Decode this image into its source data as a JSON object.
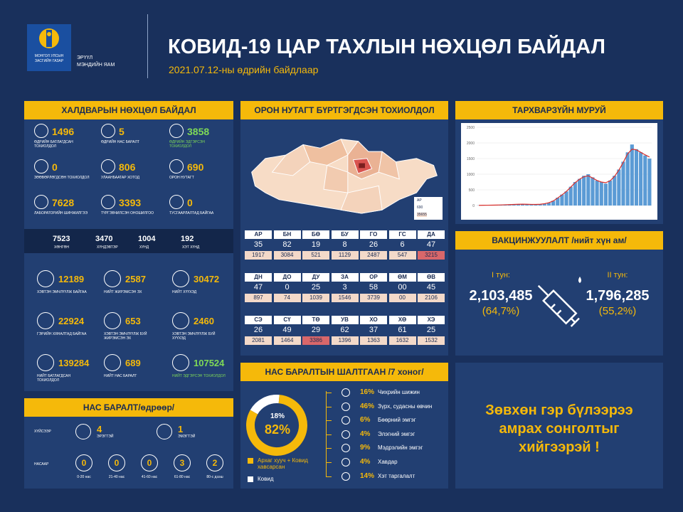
{
  "header": {
    "logo_line1": "МОНГОЛ УЛСЫН",
    "logo_line2": "ЗАСГИЙН ГАЗАР",
    "ministry_line1": "ЭРҮҮЛ",
    "ministry_line2": "МЭНДИЙН ЯАМ",
    "title": "КОВИД-19 ЦАР ТАХЛЫН НӨХЦӨЛ БАЙДАЛ",
    "date": "2021.07.12-ны өдрийн байдлаар"
  },
  "infection": {
    "title": "ХАЛДВАРЫН НӨХЦӨЛ БАЙДАЛ",
    "top": [
      {
        "value": "1496",
        "label": "ӨДРИЙН БАТЛАГДСАН ТОХИОЛДОЛ"
      },
      {
        "value": "5",
        "label": "ӨДРИЙН НАС БАРАЛТ"
      },
      {
        "value": "3858",
        "label": "ӨДРИЙН ЭДГЭРСЭН ТОХИОЛДОЛ",
        "green": true
      },
      {
        "value": "0",
        "label": "ЗӨӨВӨРЛӨГДСӨН ТОХИОЛДОЛ"
      },
      {
        "value": "806",
        "label": "УЛААНБААТАР ХОТОД"
      },
      {
        "value": "690",
        "label": "ОРОН НУТАГТ"
      },
      {
        "value": "7628",
        "label": "ЛАБОРАТОРИЙН ШИНЖИЛГЭЭ"
      },
      {
        "value": "3393",
        "label": "ТҮРГЭВЧИЛСЭН ОНОШИЛГОО"
      },
      {
        "value": "0",
        "label": "ТУСГААРЛАЛТАД БАЙГАА"
      }
    ],
    "severity": [
      {
        "value": "7523",
        "label": "ХӨНГӨН"
      },
      {
        "value": "3470",
        "label": "ХҮНДЭВТЭР"
      },
      {
        "value": "1004",
        "label": "ХҮНД"
      },
      {
        "value": "192",
        "label": "ХЭТ ХҮНД"
      }
    ],
    "bottom": [
      {
        "value": "12189",
        "label": "ХЭВТЭН ЭМЧЛҮҮЛЖ БАЙГАА"
      },
      {
        "value": "2587",
        "label": "НИЙТ ЖИРЭМСЭН ЭХ"
      },
      {
        "value": "30472",
        "label": "НИЙТ ХҮҮХЭД"
      },
      {
        "value": "22924",
        "label": "ГЭРИЙН ХЯНАЛТАД БАЙГАА"
      },
      {
        "value": "653",
        "label": "ХЭВТЭН ЭМЧЛҮҮЛЖ БУЙ ЖИРЭМСЭН ЭХ"
      },
      {
        "value": "2460",
        "label": "ХЭВТЭН ЭМЧЛҮҮЛЖ БУЙ ХҮҮХЭД"
      },
      {
        "value": "139284",
        "label": "НИЙТ БАТЛАГДСАН ТОХИОЛДОЛ"
      },
      {
        "value": "689",
        "label": "НИЙТ НАС БАРАЛТ"
      },
      {
        "value": "107524",
        "label": "НИЙТ ЭДГЭРСЭН ТОХИОЛДОЛ",
        "green": true
      }
    ]
  },
  "deaths": {
    "title": "НАС БАРАЛТ/өдрөөр/",
    "by_sex_label": "ХҮЙСЭЭР",
    "sex": [
      {
        "value": "4",
        "label": "ЭРЭГТЭЙ"
      },
      {
        "value": "1",
        "label": "ЭМЭГТЭЙ"
      }
    ],
    "by_age_label": "НАСААР",
    "age": [
      {
        "value": "0",
        "label": "0-20 нас"
      },
      {
        "value": "0",
        "label": "21-40 нас"
      },
      {
        "value": "0",
        "label": "41-60 нас"
      },
      {
        "value": "3",
        "label": "61-80 нас"
      },
      {
        "value": "2",
        "label": "80-с дээш"
      }
    ]
  },
  "regions": {
    "title": "ОРОН НУТАГТ БҮРТГЭГДСЭН ТОХИОЛДОЛ",
    "legend": {
      "code": "АР",
      "daily": "690",
      "total": "35655"
    },
    "table": [
      [
        {
          "code": "АР",
          "daily": "35",
          "total": "1917"
        },
        {
          "code": "БН",
          "daily": "82",
          "total": "3084"
        },
        {
          "code": "БӨ",
          "daily": "19",
          "total": "521"
        },
        {
          "code": "БУ",
          "daily": "8",
          "total": "1129"
        },
        {
          "code": "ГО",
          "daily": "26",
          "total": "2487"
        },
        {
          "code": "ГС",
          "daily": "6",
          "total": "547"
        },
        {
          "code": "ДА",
          "daily": "47",
          "total": "3215",
          "highlight": true
        }
      ],
      [
        {
          "code": "ДН",
          "daily": "47",
          "total": "897"
        },
        {
          "code": "ДО",
          "daily": "0",
          "total": "74"
        },
        {
          "code": "ДУ",
          "daily": "25",
          "total": "1039"
        },
        {
          "code": "ЗА",
          "daily": "3",
          "total": "1546"
        },
        {
          "code": "ОР",
          "daily": "58",
          "total": "3739"
        },
        {
          "code": "ӨМ",
          "daily": "00",
          "total": "00"
        },
        {
          "code": "ӨВ",
          "daily": "45",
          "total": "2106"
        }
      ],
      [
        {
          "code": "СЭ",
          "daily": "26",
          "total": "2081"
        },
        {
          "code": "СҮ",
          "daily": "49",
          "total": "1464"
        },
        {
          "code": "ТӨ",
          "daily": "29",
          "total": "3386",
          "highlight": true
        },
        {
          "code": "УВ",
          "daily": "62",
          "total": "1396"
        },
        {
          "code": "ХО",
          "daily": "37",
          "total": "1363"
        },
        {
          "code": "ХӨ",
          "daily": "61",
          "total": "1632"
        },
        {
          "code": "ХЭ",
          "daily": "25",
          "total": "1532"
        }
      ]
    ]
  },
  "causes": {
    "title": "НАС БАРАЛТЫН ШАЛТГААН /7 хоног/",
    "donut": [
      {
        "name": "Ковид",
        "value": 18,
        "value_label": "18%",
        "color": "#ffffff"
      },
      {
        "name": "Архаг хууч + Ковид хавсарсан",
        "value": 82,
        "value_label": "82%",
        "color": "#f5b90a"
      }
    ],
    "list": [
      {
        "pct": "16%",
        "name": "Чихрийн шижин"
      },
      {
        "pct": "46%",
        "name": "Зүрх, судасны өвчин"
      },
      {
        "pct": "6%",
        "name": "Бөөрний эмгэг"
      },
      {
        "pct": "4%",
        "name": "Элэгний эмгэг"
      },
      {
        "pct": "9%",
        "name": "Мэдрэлийн эмгэг"
      },
      {
        "pct": "4%",
        "name": "Хавдар"
      },
      {
        "pct": "14%",
        "name": "Хэт таргалалт"
      }
    ]
  },
  "curve": {
    "title": "ТАРХВАРЗҮЙН МУРУЙ",
    "ylim": [
      0,
      2500
    ],
    "yticks": [
      0,
      500,
      1000,
      1500,
      2000,
      2500
    ],
    "cases": [
      5,
      8,
      10,
      12,
      15,
      20,
      25,
      30,
      35,
      40,
      45,
      40,
      35,
      30,
      40,
      60,
      90,
      150,
      250,
      350,
      450,
      600,
      750,
      850,
      950,
      1000,
      900,
      800,
      750,
      700,
      800,
      950,
      1150,
      1400,
      1700,
      1950,
      1800,
      1700,
      1600,
      1500
    ],
    "trend": [
      6,
      8,
      10,
      12,
      15,
      19,
      24,
      29,
      34,
      39,
      42,
      40,
      36,
      34,
      40,
      58,
      90,
      145,
      240,
      340,
      450,
      590,
      730,
      840,
      920,
      950,
      880,
      800,
      750,
      730,
      790,
      930,
      1130,
      1380,
      1650,
      1800,
      1780,
      1700,
      1620,
      1550
    ]
  },
  "vaccine": {
    "title": "ВАКЦИНЖУУЛАЛТ /нийт хүн ам/",
    "doses": [
      {
        "label": "I тун:",
        "count": "2,103,485",
        "pct": "(64,7%)"
      },
      {
        "label": "II тун:",
        "count": "1,796,285",
        "pct": "(55,2%)"
      }
    ]
  },
  "message": {
    "line1": "Зөвхөн гэр бүлээрээ",
    "line2": "амрах сонголтыг",
    "line3": "хийгээрэй !"
  }
}
